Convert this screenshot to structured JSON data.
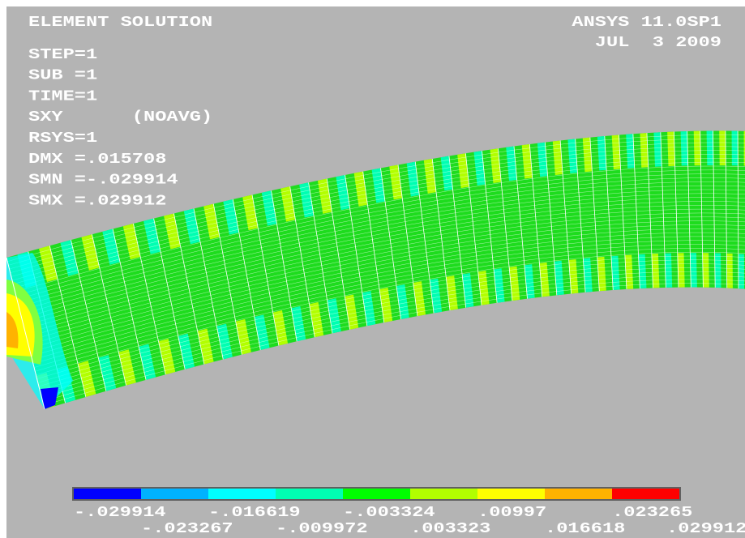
{
  "header": {
    "title": "ELEMENT SOLUTION",
    "lines": [
      "STEP=1",
      "SUB =1",
      "TIME=1",
      "SXY      (NOAVG)",
      "RSYS=1",
      "DMX =.015708",
      "SMN =-.029914",
      "SMX =.029912"
    ],
    "program": "ANSYS 11.0SP1",
    "date": "JUL  3 2009"
  },
  "legend": {
    "labels": [
      "-.029914",
      "-.023267",
      "-.016619",
      "-.009972",
      "-.003324",
      ".003323",
      ".00997",
      ".016618",
      ".023265",
      ".029912"
    ]
  }
}
